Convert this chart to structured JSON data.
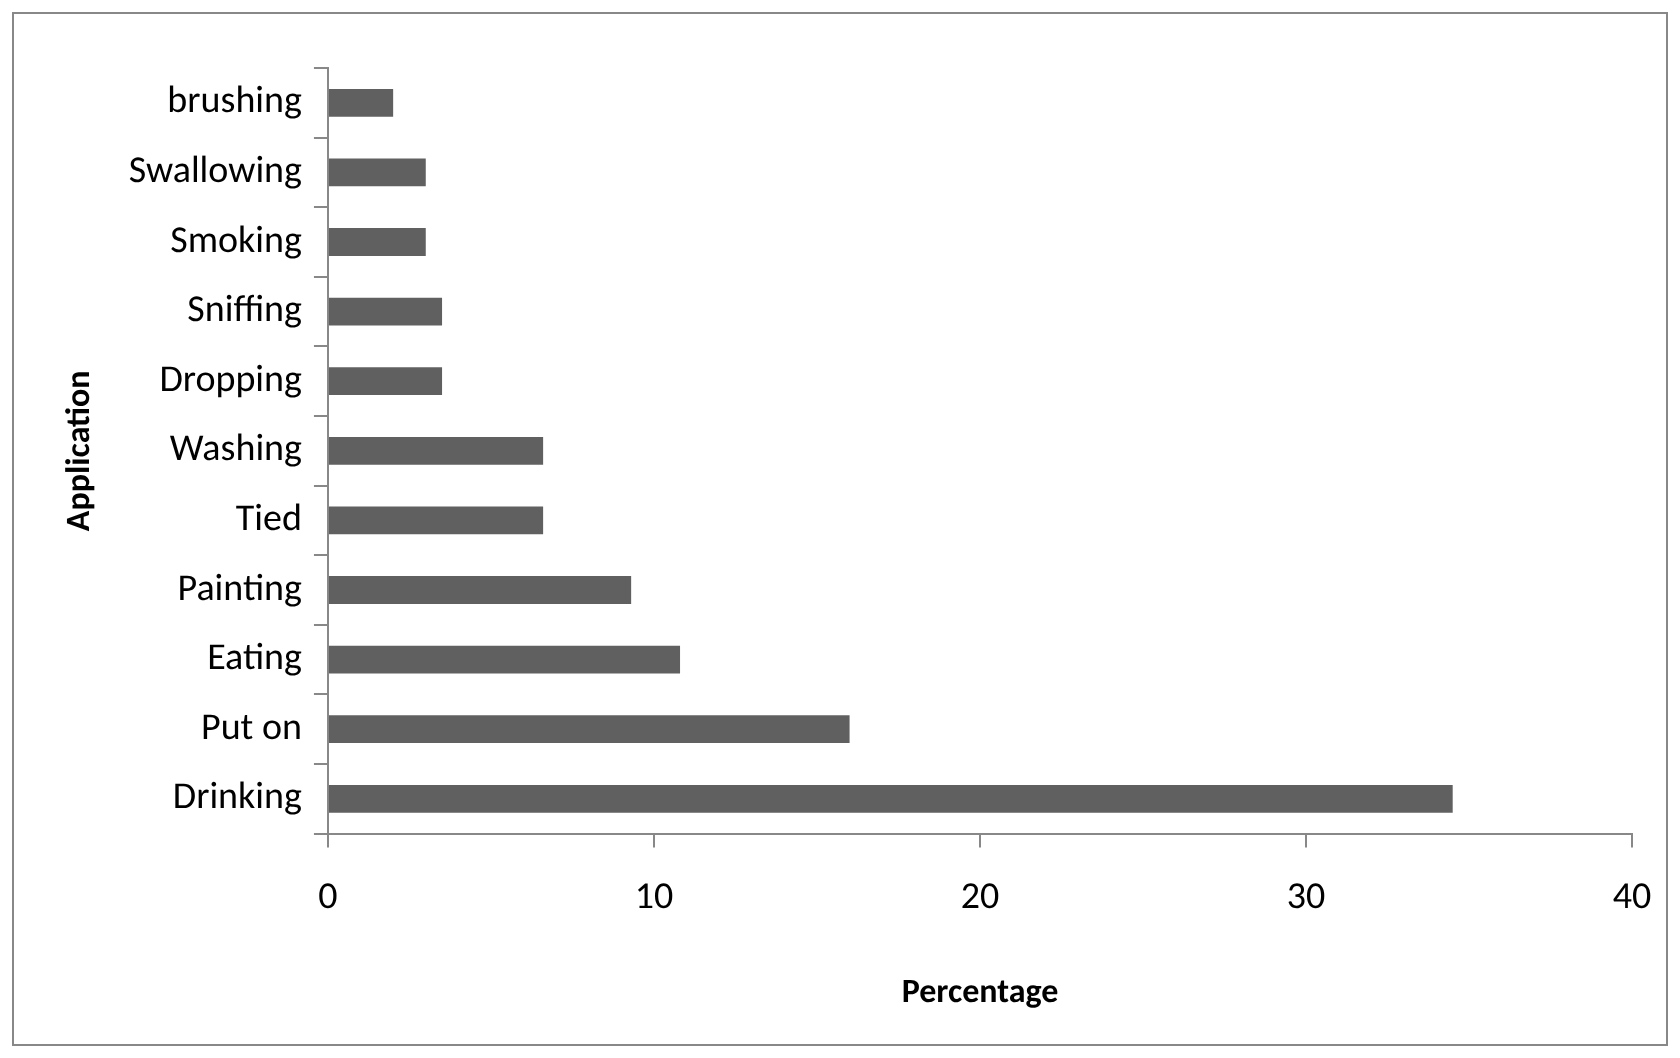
{
  "chart_data": {
    "type": "bar",
    "orientation": "horizontal",
    "xlabel": "Percentage",
    "ylabel": "Application",
    "categories": [
      "brushing",
      "Swallowing",
      "Smoking",
      "Sniffing",
      "Dropping",
      "Washing",
      "Tied",
      "Painting",
      "Eating",
      "Put on",
      "Drinking"
    ],
    "values": [
      2.0,
      3.0,
      3.0,
      3.5,
      3.5,
      6.6,
      6.6,
      9.3,
      10.8,
      16,
      34.5
    ],
    "color": "#606060",
    "xlim": [
      0,
      40
    ],
    "xticks": [
      0,
      10,
      20,
      30,
      40
    ],
    "grid": false,
    "legend": false
  }
}
